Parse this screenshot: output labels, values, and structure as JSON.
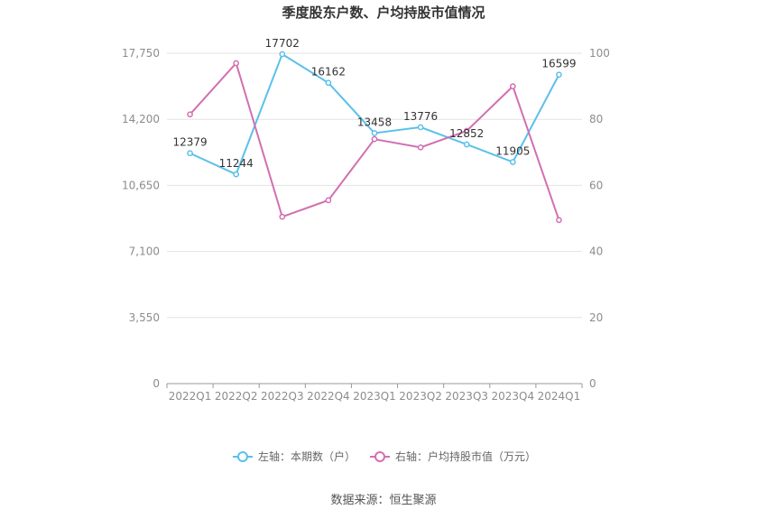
{
  "chart_data": {
    "type": "line",
    "title": "季度股东户数、户均持股市值情况",
    "categories": [
      "2022Q1",
      "2022Q2",
      "2022Q3",
      "2022Q4",
      "2023Q1",
      "2023Q2",
      "2023Q3",
      "2023Q4",
      "2024Q1"
    ],
    "left_axis": {
      "ticks": [
        "0",
        "3,550",
        "7,100",
        "10,650",
        "14,200",
        "17,750"
      ],
      "ylim": [
        0,
        17750
      ]
    },
    "right_axis": {
      "ticks": [
        "0",
        "20",
        "40",
        "60",
        "80",
        "100"
      ],
      "ylim": [
        0,
        100
      ]
    },
    "series": [
      {
        "name": "左轴：本期数（户）",
        "axis": "left",
        "color": "#5bc0eb",
        "values": [
          12379,
          11244,
          17702,
          16162,
          13458,
          13776,
          12852,
          11905,
          16599
        ],
        "labels": [
          "12379",
          "11244",
          "17702",
          "16162",
          "13458",
          "13776",
          "12852",
          "11905",
          "16599"
        ]
      },
      {
        "name": "右轴：户均持股市值（万元）",
        "axis": "right",
        "color": "#d36fb0",
        "values": [
          81.5,
          97.0,
          50.5,
          55.5,
          74.0,
          71.5,
          76.5,
          90.0,
          49.5
        ]
      }
    ],
    "grid": true,
    "legend_position": "bottom"
  },
  "source": "数据来源：恒生聚源"
}
